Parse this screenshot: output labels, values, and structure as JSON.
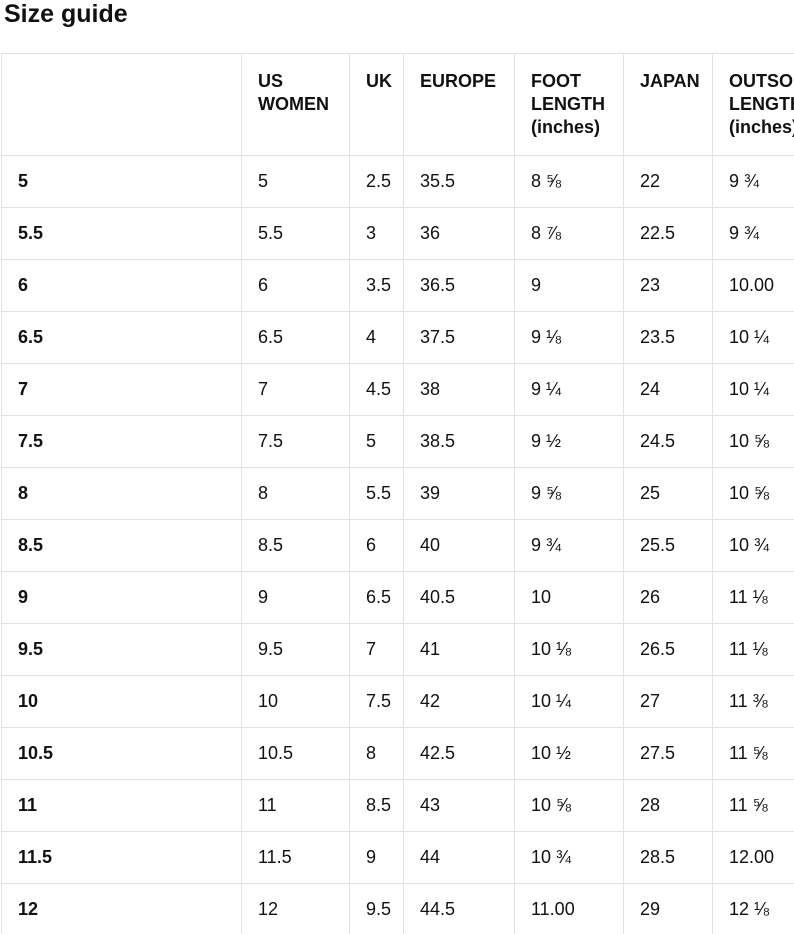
{
  "page": {
    "title": "Size guide"
  },
  "size_table": {
    "columns": [
      {
        "label": ""
      },
      {
        "label": "US WOMEN"
      },
      {
        "label": "UK"
      },
      {
        "label": "EUROPE"
      },
      {
        "label": "FOOT LENGTH (inches)"
      },
      {
        "label": "JAPAN"
      },
      {
        "label": "OUTSOLE LENGTH (inches)"
      }
    ],
    "rows": [
      {
        "label": "5",
        "cells": [
          "5",
          "2.5",
          "35.5",
          "8 ⅝",
          "22",
          "9 ¾"
        ]
      },
      {
        "label": "5.5",
        "cells": [
          "5.5",
          "3",
          "36",
          "8 ⅞",
          "22.5",
          "9 ¾"
        ]
      },
      {
        "label": "6",
        "cells": [
          "6",
          "3.5",
          "36.5",
          "9",
          "23",
          "10.00"
        ]
      },
      {
        "label": "6.5",
        "cells": [
          "6.5",
          "4",
          "37.5",
          "9 ⅛",
          "23.5",
          "10 ¼"
        ]
      },
      {
        "label": "7",
        "cells": [
          "7",
          "4.5",
          "38",
          "9 ¼",
          "24",
          "10 ¼"
        ]
      },
      {
        "label": "7.5",
        "cells": [
          "7.5",
          "5",
          "38.5",
          "9 ½",
          "24.5",
          "10 ⅝"
        ]
      },
      {
        "label": "8",
        "cells": [
          "8",
          "5.5",
          "39",
          "9 ⅝",
          "25",
          "10 ⅝"
        ]
      },
      {
        "label": "8.5",
        "cells": [
          "8.5",
          "6",
          "40",
          "9 ¾",
          "25.5",
          "10 ¾"
        ]
      },
      {
        "label": "9",
        "cells": [
          "9",
          "6.5",
          "40.5",
          "10",
          "26",
          "11 ⅛"
        ]
      },
      {
        "label": "9.5",
        "cells": [
          "9.5",
          "7",
          "41",
          "10 ⅛",
          "26.5",
          "11 ⅛"
        ]
      },
      {
        "label": "10",
        "cells": [
          "10",
          "7.5",
          "42",
          "10 ¼",
          "27",
          "11 ⅜"
        ]
      },
      {
        "label": "10.5",
        "cells": [
          "10.5",
          "8",
          "42.5",
          "10 ½",
          "27.5",
          "11 ⅝"
        ]
      },
      {
        "label": "11",
        "cells": [
          "11",
          "8.5",
          "43",
          "10 ⅝",
          "28",
          "11 ⅝"
        ]
      },
      {
        "label": "11.5",
        "cells": [
          "11.5",
          "9",
          "44",
          "10 ¾",
          "28.5",
          "12.00"
        ]
      },
      {
        "label": "12",
        "cells": [
          "12",
          "9.5",
          "44.5",
          "11.00",
          "29",
          "12 ⅛"
        ]
      }
    ]
  }
}
